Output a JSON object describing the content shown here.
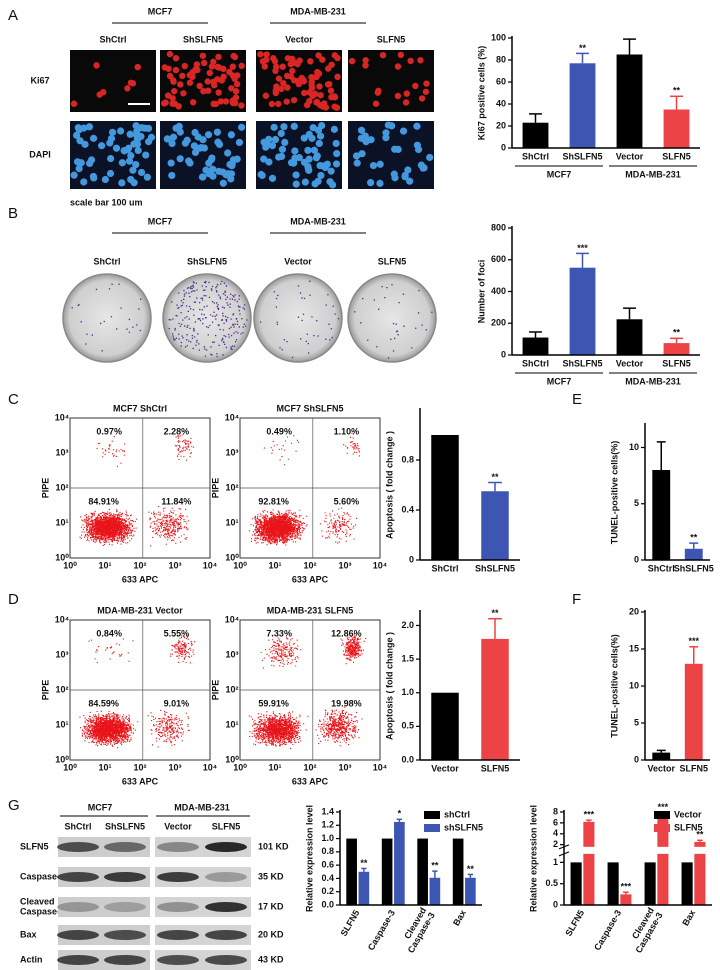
{
  "panel_labels": [
    "A",
    "B",
    "C",
    "D",
    "E",
    "F",
    "G"
  ],
  "micrographs": {
    "groups": [
      "MCF7",
      "MDA-MB-231"
    ],
    "columns": [
      "ShCtrl",
      "ShSLFN5",
      "Vector",
      "SLFN5"
    ],
    "rows": [
      "Ki67",
      "DAPI"
    ],
    "scale_bar": "scale bar 100 um"
  },
  "colony_plates": {
    "groups": [
      "MCF7",
      "MDA-MB-231"
    ],
    "columns": [
      "ShCtrl",
      "ShSLFN5",
      "Vector",
      "SLFN5"
    ]
  },
  "flow_axis_ticks": [
    "10⁰",
    "10¹",
    "10²",
    "10³",
    "10⁴"
  ],
  "flow_plots": [
    {
      "title": "MCF7 ShCtrl",
      "ylabel": "PIPE",
      "xlabel": "633 APC",
      "quadrants": [
        "0.97%",
        "2.28%",
        "84.91%",
        "11.84%"
      ]
    },
    {
      "title": "MCF7 ShSLFN5",
      "ylabel": "PIPE",
      "xlabel": "633 APC",
      "quadrants": [
        "0.49%",
        "1.10%",
        "92.81%",
        "5.60%"
      ]
    },
    {
      "title": "MDA-MB-231 Vector",
      "ylabel": "PIPE",
      "xlabel": "633 APC",
      "quadrants": [
        "0.84%",
        "5.55%",
        "84.59%",
        "9.01%"
      ]
    },
    {
      "title": "MDA-MB-231 SLFN5",
      "ylabel": "PIPE",
      "xlabel": "633 APC",
      "quadrants": [
        "7.33%",
        "12.86%",
        "59.91%",
        "19.98%"
      ]
    }
  ],
  "western_blot": {
    "groups": [
      "MCF7",
      "MDA-MB-231"
    ],
    "columns": [
      "ShCtrl",
      "ShSLFN5",
      "Vector",
      "SLFN5"
    ],
    "rows": [
      {
        "protein": [
          "SLFN5"
        ],
        "size": "101 KD"
      },
      {
        "protein": [
          "Caspase-3"
        ],
        "size": "35 KD"
      },
      {
        "protein": [
          "Cleaved",
          "Caspase-3"
        ],
        "size": "17 KD"
      },
      {
        "protein": [
          "Bax"
        ],
        "size": "20 KD"
      },
      {
        "protein": [
          "Actin"
        ],
        "size": "43 KD"
      }
    ]
  },
  "chart_data": [
    {
      "type": "bar",
      "ylabel": "Ki67 positive cells (%)",
      "categories": [
        [
          "ShCtrl"
        ],
        [
          "ShSLFN5"
        ],
        [
          "Vector"
        ],
        [
          "SLFN5"
        ]
      ],
      "groups": [
        {
          "label": "MCF7",
          "span": [
            0,
            1
          ]
        },
        {
          "label": "MDA-MB-231",
          "span": [
            2,
            3
          ]
        }
      ],
      "series": [
        {
          "colors": [
            "#000000",
            "#3d56b2",
            "#000000",
            "#ec4446"
          ],
          "values": [
            23,
            77,
            85,
            35
          ],
          "errors": [
            8,
            9,
            14,
            12
          ]
        }
      ],
      "annotations": [
        {
          "text": "**",
          "index": 1,
          "series": 0
        },
        {
          "text": "**",
          "index": 3,
          "series": 0
        }
      ],
      "ylim": [
        0,
        100
      ],
      "yticks": [
        0,
        20,
        40,
        60,
        80,
        100
      ]
    },
    {
      "type": "bar",
      "ylabel": "Number of foci",
      "categories": [
        [
          "ShCtrl"
        ],
        [
          "ShSLFN5"
        ],
        [
          "Vector"
        ],
        [
          "SLFN5"
        ]
      ],
      "groups": [
        {
          "label": "MCF7",
          "span": [
            0,
            1
          ]
        },
        {
          "label": "MDA-MB-231",
          "span": [
            2,
            3
          ]
        }
      ],
      "series": [
        {
          "colors": [
            "#000000",
            "#3d56b2",
            "#000000",
            "#ec4446"
          ],
          "values": [
            110,
            550,
            225,
            75
          ],
          "errors": [
            35,
            90,
            70,
            30
          ]
        }
      ],
      "annotations": [
        {
          "text": "***",
          "index": 1,
          "series": 0
        },
        {
          "text": "**",
          "index": 3,
          "series": 0
        }
      ],
      "ylim": [
        0,
        800
      ],
      "yticks": [
        0,
        200,
        400,
        600,
        800
      ]
    },
    {
      "type": "bar",
      "ylabel": "Apoptosis ( fold change )",
      "categories": [
        [
          "ShCtrl"
        ],
        [
          "ShSLFN5"
        ]
      ],
      "series": [
        {
          "colors": [
            "#000000",
            "#3d56b2"
          ],
          "values": [
            1,
            0.55
          ],
          "errors": [
            null,
            0.07
          ]
        }
      ],
      "annotations": [
        {
          "text": "**",
          "index": 1,
          "series": 0
        }
      ],
      "ylim": [
        0,
        1.2
      ],
      "yticks": [
        0,
        0.4,
        0.8
      ]
    },
    {
      "type": "bar",
      "ylabel": "TUNEL-positive cells(%)",
      "categories": [
        [
          "ShCtrl"
        ],
        [
          "ShSLFN5"
        ]
      ],
      "series": [
        {
          "colors": [
            "#000000",
            "#3d56b2"
          ],
          "values": [
            8,
            1
          ],
          "errors": [
            2.5,
            0.5
          ]
        }
      ],
      "annotations": [
        {
          "text": "**",
          "index": 1,
          "series": 0
        }
      ],
      "ylim": [
        0,
        12
      ],
      "yticks": [
        0,
        5,
        10
      ]
    },
    {
      "type": "bar",
      "ylabel": "Apoptosis ( fold change )",
      "categories": [
        [
          "Vector"
        ],
        [
          "SLFN5"
        ]
      ],
      "series": [
        {
          "colors": [
            "#000000",
            "#ec4446"
          ],
          "values": [
            1,
            1.8
          ],
          "errors": [
            null,
            0.3
          ]
        }
      ],
      "annotations": [
        {
          "text": "**",
          "index": 1,
          "series": 0
        }
      ],
      "ylim": [
        0,
        2.2
      ],
      "yticks": [
        {
          "value": 0,
          "label": "0.0"
        },
        {
          "value": 0.5,
          "label": "0.5"
        },
        {
          "value": 1,
          "label": "1.0"
        },
        {
          "value": 1.5,
          "label": "1.5"
        },
        {
          "value": 2,
          "label": "2.0"
        }
      ]
    },
    {
      "type": "bar",
      "ylabel": "TUNEL-positive cells(%)",
      "categories": [
        [
          "Vector"
        ],
        [
          "SLFN5"
        ]
      ],
      "series": [
        {
          "colors": [
            "#000000",
            "#ec4446"
          ],
          "values": [
            1,
            13
          ],
          "errors": [
            0.3,
            2.3
          ]
        }
      ],
      "annotations": [
        {
          "text": "***",
          "index": 1,
          "series": 0
        }
      ],
      "ylim": [
        0,
        20
      ],
      "yticks": [
        0,
        5,
        10,
        15,
        20
      ]
    },
    {
      "type": "bar",
      "ylabel": "Relative expression level",
      "categories": [
        [
          "SLFN5"
        ],
        [
          "Caspase-3"
        ],
        [
          "Cleaved",
          "Caspase-3"
        ],
        [
          "Bax"
        ]
      ],
      "series": [
        {
          "name": "shCtrl",
          "color": "#000000",
          "values": [
            1,
            1,
            1,
            1
          ]
        },
        {
          "name": "shSLFN5",
          "color": "#3d56b2",
          "values": [
            0.5,
            1.25,
            0.41,
            0.41
          ],
          "errors": [
            0.05,
            0.04,
            0.1,
            0.05
          ]
        }
      ],
      "annotations": [
        {
          "text": "**",
          "index": 0,
          "series": 1
        },
        {
          "text": "*",
          "index": 1,
          "series": 1
        },
        {
          "text": "**",
          "index": 2,
          "series": 1
        },
        {
          "text": "**",
          "index": 3,
          "series": 1
        }
      ],
      "legend": "upper right",
      "ylim": [
        0,
        1.4
      ],
      "yticks": [
        {
          "value": 0,
          "label": "0.0"
        },
        {
          "value": 0.2,
          "label": "0.2"
        },
        {
          "value": 0.4,
          "label": "0.4"
        },
        {
          "value": 0.6,
          "label": "0.6"
        },
        {
          "value": 0.8,
          "label": "0.8"
        },
        {
          "value": 1,
          "label": "1.0"
        },
        {
          "value": 1.2,
          "label": "1.2"
        },
        {
          "value": 1.4,
          "label": "1.4"
        }
      ]
    },
    {
      "type": "bar",
      "ylabel": "Relative expression level",
      "categories": [
        [
          "SLFN5"
        ],
        [
          "Caspase-3"
        ],
        [
          "Cleaved",
          "Caspase-3"
        ],
        [
          "Bax"
        ]
      ],
      "series": [
        {
          "name": "Vector",
          "color": "#000000",
          "values": [
            1,
            1,
            1,
            1
          ]
        },
        {
          "name": "SLFN5",
          "color": "#ec4446",
          "values": [
            6.2,
            0.25,
            7.6,
            2.5
          ],
          "errors": [
            0.3,
            0.05,
            0.3,
            0.3
          ]
        }
      ],
      "annotations": [
        {
          "text": "***",
          "index": 0,
          "series": 1
        },
        {
          "text": "***",
          "index": 1,
          "series": 1
        },
        {
          "text": "***",
          "index": 2,
          "series": 1
        },
        {
          "text": "**",
          "index": 3,
          "series": 1
        }
      ],
      "legend": "upper right",
      "ylim": [
        0,
        8
      ],
      "ybreak": [
        1.2,
        1.6
      ],
      "yticks": [
        0,
        0.5,
        1,
        2,
        4,
        6,
        8
      ]
    }
  ]
}
